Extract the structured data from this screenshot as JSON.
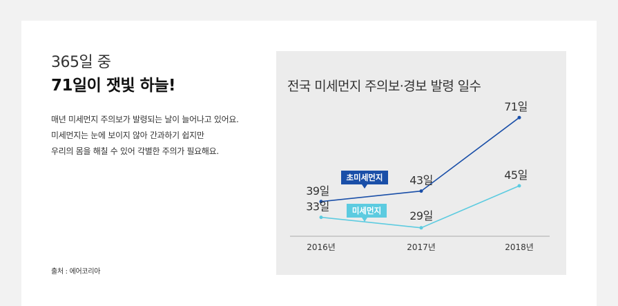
{
  "intro": {
    "headline_light": "365일 중",
    "headline_bold": "71일이 잿빛 하늘!",
    "desc_lines": [
      "매년 미세먼지 주의보가 발령되는 날이 늘어나고 있어요.",
      "미세먼지는 눈에 보이지 않아 간과하기 쉽지만",
      "우리의 몸을 해칠 수 있어 각별한 주의가 필요해요."
    ]
  },
  "source": "출처 : 에어코리아",
  "colors": {
    "series_dark": "#1a4fa8",
    "series_light": "#5ccbe0",
    "axis": "#aaaaaa"
  },
  "chart_data": {
    "type": "line",
    "title": "전국 미세먼지 주의보·경보 발령 일수",
    "categories": [
      "2016년",
      "2017년",
      "2018년"
    ],
    "ylim": [
      20,
      80
    ],
    "grid": false,
    "series": [
      {
        "name": "초미세먼지",
        "values": [
          39,
          43,
          71
        ],
        "labels": [
          "39일",
          "43일",
          "71일"
        ],
        "color": "#1a4fa8"
      },
      {
        "name": "미세먼지",
        "values": [
          33,
          29,
          45
        ],
        "labels": [
          "33일",
          "29일",
          "45일"
        ],
        "color": "#5ccbe0"
      }
    ]
  }
}
